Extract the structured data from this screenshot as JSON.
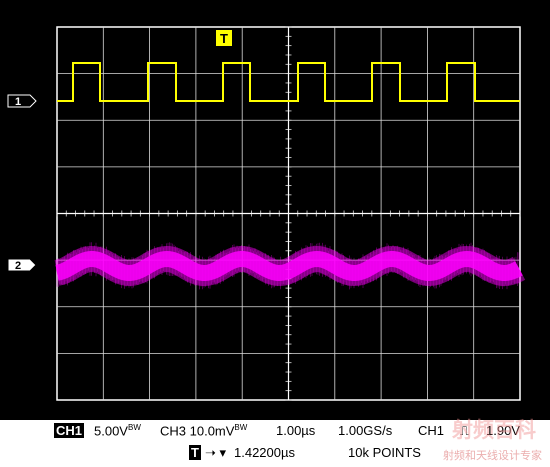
{
  "trigger_marker": "T",
  "channels": [
    {
      "label": "1",
      "color": "#ffff00"
    },
    {
      "label": "2",
      "color": "#ff00ff"
    }
  ],
  "status": {
    "ch1_box": "CH1",
    "ch1_scale": "5.00V",
    "ch1_suffix": "BW",
    "ch3_scale": "CH3 10.0mV",
    "ch3_suffix": "BW",
    "timebase": "1.00µs",
    "sample_rate": "1.00GS/s",
    "trig_source": "CH1",
    "trig_slope": "⎍",
    "trig_level": "1.90V",
    "trig_box": "T",
    "trig_pos_arrow": "➝ ▾",
    "trig_position": "1.42200µs",
    "record_length": "10k POINTS"
  },
  "watermark": {
    "logo": "射频百科",
    "text": "射频和天线设计专家"
  },
  "colors": {
    "background": "#000000",
    "graticule": "#dcdcdc",
    "frame": "#ffffff"
  }
}
